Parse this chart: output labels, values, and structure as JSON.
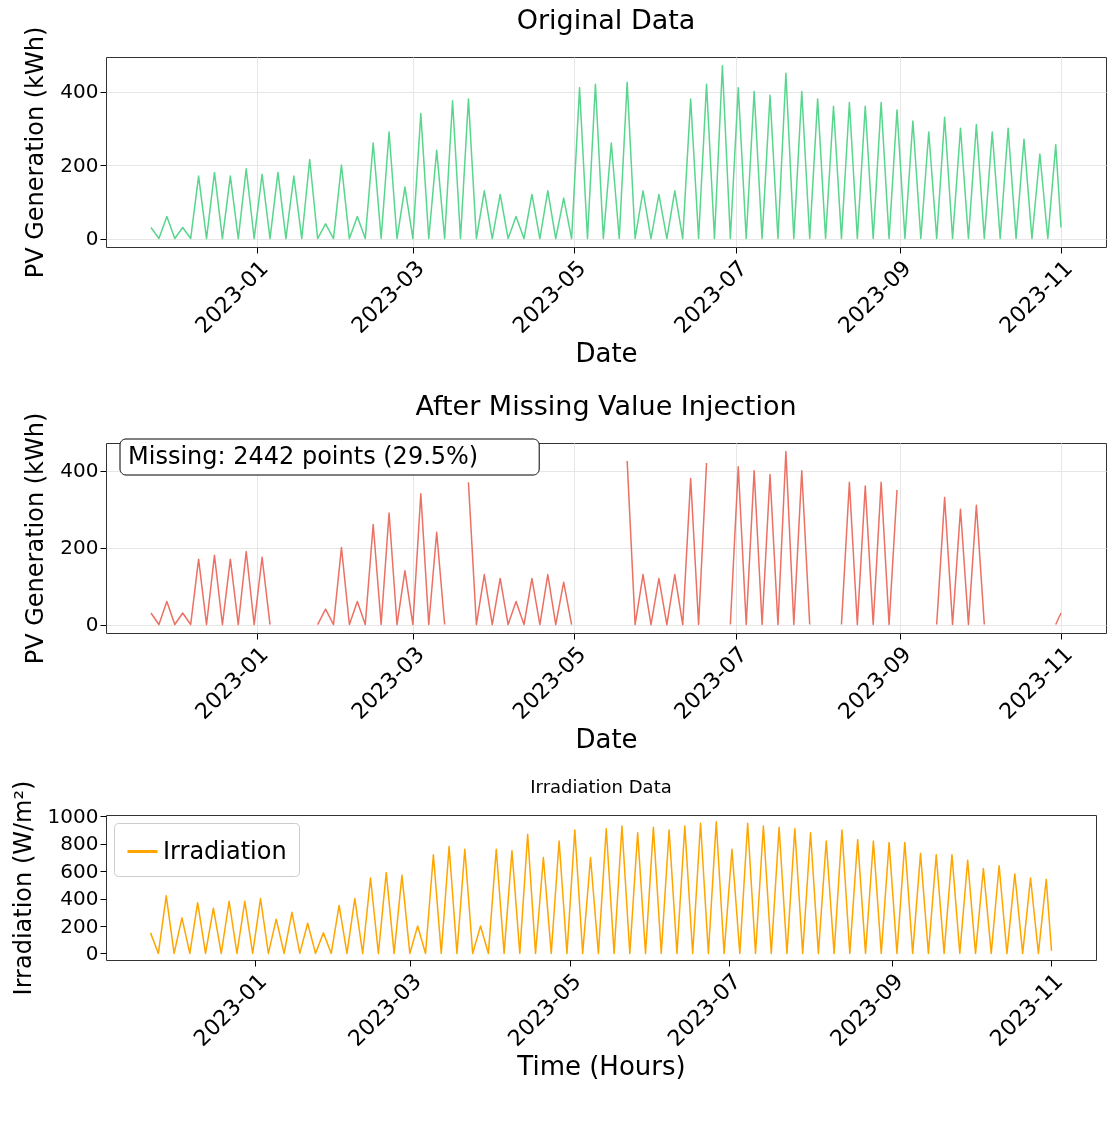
{
  "chart_data": [
    {
      "type": "line",
      "title": "Original Data",
      "xlabel": "Date",
      "ylabel": "PV Generation (kWh)",
      "grid": true,
      "xlim": [
        "2022-11-05",
        "2023-11-18"
      ],
      "xticks": [
        {
          "value": "2023-01",
          "label": "2023-01"
        },
        {
          "value": "2023-03",
          "label": "2023-03"
        },
        {
          "value": "2023-05",
          "label": "2023-05"
        },
        {
          "value": "2023-07",
          "label": "2023-07"
        },
        {
          "value": "2023-09",
          "label": "2023-09"
        },
        {
          "value": "2023-11",
          "label": "2023-11"
        }
      ],
      "ylim": [
        -23,
        494
      ],
      "yticks": [
        0,
        200,
        400
      ],
      "x": [
        "2022-11-22",
        "2022-11-25",
        "2022-11-28",
        "2022-12-01",
        "2022-12-04",
        "2022-12-07",
        "2022-12-10",
        "2022-12-13",
        "2022-12-16",
        "2022-12-19",
        "2022-12-22",
        "2022-12-25",
        "2022-12-28",
        "2022-12-31",
        "2023-01-03",
        "2023-01-06",
        "2023-01-09",
        "2023-01-12",
        "2023-01-15",
        "2023-01-18",
        "2023-01-21",
        "2023-01-24",
        "2023-01-27",
        "2023-01-30",
        "2023-02-02",
        "2023-02-05",
        "2023-02-08",
        "2023-02-11",
        "2023-02-14",
        "2023-02-17",
        "2023-02-20",
        "2023-02-23",
        "2023-02-26",
        "2023-03-01",
        "2023-03-04",
        "2023-03-07",
        "2023-03-10",
        "2023-03-13",
        "2023-03-16",
        "2023-03-19",
        "2023-03-22",
        "2023-03-25",
        "2023-03-28",
        "2023-03-31",
        "2023-04-03",
        "2023-04-06",
        "2023-04-09",
        "2023-04-12",
        "2023-04-15",
        "2023-04-18",
        "2023-04-21",
        "2023-04-24",
        "2023-04-27",
        "2023-04-30",
        "2023-05-03",
        "2023-05-06",
        "2023-05-09",
        "2023-05-12",
        "2023-05-15",
        "2023-05-18",
        "2023-05-21",
        "2023-05-24",
        "2023-05-27",
        "2023-05-30",
        "2023-06-02",
        "2023-06-05",
        "2023-06-08",
        "2023-06-11",
        "2023-06-14",
        "2023-06-17",
        "2023-06-20",
        "2023-06-23",
        "2023-06-26",
        "2023-06-29",
        "2023-07-02",
        "2023-07-05",
        "2023-07-08",
        "2023-07-11",
        "2023-07-14",
        "2023-07-17",
        "2023-07-20",
        "2023-07-23",
        "2023-07-26",
        "2023-07-29",
        "2023-08-01",
        "2023-08-04",
        "2023-08-07",
        "2023-08-10",
        "2023-08-13",
        "2023-08-16",
        "2023-08-19",
        "2023-08-22",
        "2023-08-25",
        "2023-08-28",
        "2023-08-31",
        "2023-09-03",
        "2023-09-06",
        "2023-09-09",
        "2023-09-12",
        "2023-09-15",
        "2023-09-18",
        "2023-09-21",
        "2023-09-24",
        "2023-09-27",
        "2023-09-30",
        "2023-10-03",
        "2023-10-06",
        "2023-10-09",
        "2023-10-12",
        "2023-10-15",
        "2023-10-18",
        "2023-10-21",
        "2023-10-24",
        "2023-10-27",
        "2023-10-30",
        "2023-11-01"
      ],
      "series": [
        {
          "color": "#58d68d",
          "values": [
            30,
            0,
            60,
            0,
            30,
            0,
            170,
            0,
            180,
            0,
            170,
            0,
            190,
            0,
            175,
            0,
            180,
            0,
            170,
            0,
            215,
            0,
            40,
            0,
            200,
            0,
            60,
            0,
            260,
            0,
            290,
            0,
            140,
            0,
            340,
            0,
            240,
            0,
            375,
            0,
            380,
            0,
            130,
            0,
            120,
            0,
            60,
            0,
            120,
            0,
            130,
            0,
            110,
            0,
            410,
            0,
            420,
            0,
            260,
            0,
            425,
            0,
            130,
            0,
            120,
            0,
            130,
            0,
            380,
            0,
            420,
            0,
            470,
            0,
            410,
            0,
            400,
            0,
            390,
            0,
            450,
            0,
            400,
            0,
            380,
            0,
            360,
            0,
            370,
            0,
            360,
            0,
            370,
            0,
            350,
            0,
            320,
            0,
            290,
            0,
            330,
            0,
            300,
            0,
            310,
            0,
            290,
            0,
            300,
            0,
            270,
            0,
            230,
            0,
            255,
            30
          ]
        }
      ]
    },
    {
      "type": "line",
      "title": "After Missing Value Injection",
      "xlabel": "Date",
      "ylabel": "PV Generation (kWh)",
      "grid": true,
      "annotations": [
        "Missing: 2442 points (29.5%)"
      ],
      "xlim": [
        "2022-11-05",
        "2023-11-18"
      ],
      "xticks": [
        {
          "value": "2023-01",
          "label": "2023-01"
        },
        {
          "value": "2023-03",
          "label": "2023-03"
        },
        {
          "value": "2023-05",
          "label": "2023-05"
        },
        {
          "value": "2023-07",
          "label": "2023-07"
        },
        {
          "value": "2023-09",
          "label": "2023-09"
        },
        {
          "value": "2023-11",
          "label": "2023-11"
        }
      ],
      "ylim": [
        -22,
        472
      ],
      "yticks": [
        0,
        200,
        400
      ],
      "x": [
        "2022-11-22",
        "2022-11-25",
        "2022-11-28",
        "2022-12-01",
        "2022-12-04",
        "2022-12-07",
        "2022-12-10",
        "2022-12-13",
        "2022-12-16",
        "2022-12-19",
        "2022-12-22",
        "2022-12-25",
        "2022-12-28",
        "2022-12-31",
        "2023-01-03",
        "2023-01-06",
        "2023-01-09",
        "2023-01-12",
        "2023-01-15",
        "2023-01-18",
        "2023-01-21",
        "2023-01-24",
        "2023-01-27",
        "2023-01-30",
        "2023-02-02",
        "2023-02-05",
        "2023-02-08",
        "2023-02-11",
        "2023-02-14",
        "2023-02-17",
        "2023-02-20",
        "2023-02-23",
        "2023-02-26",
        "2023-03-01",
        "2023-03-04",
        "2023-03-07",
        "2023-03-10",
        "2023-03-13",
        "2023-03-16",
        "2023-03-19",
        "2023-03-22",
        "2023-03-25",
        "2023-03-28",
        "2023-03-31",
        "2023-04-03",
        "2023-04-06",
        "2023-04-09",
        "2023-04-12",
        "2023-04-15",
        "2023-04-18",
        "2023-04-21",
        "2023-04-24",
        "2023-04-27",
        "2023-04-30",
        "2023-05-03",
        "2023-05-06",
        "2023-05-09",
        "2023-05-12",
        "2023-05-15",
        "2023-05-18",
        "2023-05-21",
        "2023-05-24",
        "2023-05-27",
        "2023-05-30",
        "2023-06-02",
        "2023-06-05",
        "2023-06-08",
        "2023-06-11",
        "2023-06-14",
        "2023-06-17",
        "2023-06-20",
        "2023-06-23",
        "2023-06-26",
        "2023-06-29",
        "2023-07-02",
        "2023-07-05",
        "2023-07-08",
        "2023-07-11",
        "2023-07-14",
        "2023-07-17",
        "2023-07-20",
        "2023-07-23",
        "2023-07-26",
        "2023-07-29",
        "2023-08-01",
        "2023-08-04",
        "2023-08-07",
        "2023-08-10",
        "2023-08-13",
        "2023-08-16",
        "2023-08-19",
        "2023-08-22",
        "2023-08-25",
        "2023-08-28",
        "2023-08-31",
        "2023-09-03",
        "2023-09-06",
        "2023-09-09",
        "2023-09-12",
        "2023-09-15",
        "2023-09-18",
        "2023-09-21",
        "2023-09-24",
        "2023-09-27",
        "2023-09-30",
        "2023-10-03",
        "2023-10-06",
        "2023-10-09",
        "2023-10-12",
        "2023-10-15",
        "2023-10-18",
        "2023-10-21",
        "2023-10-24",
        "2023-10-27",
        "2023-10-30",
        "2023-11-01"
      ],
      "series": [
        {
          "color": "#ec7063",
          "values": [
            30,
            0,
            60,
            0,
            30,
            0,
            170,
            0,
            180,
            0,
            170,
            0,
            190,
            0,
            175,
            0,
            null,
            null,
            null,
            null,
            null,
            0,
            40,
            0,
            200,
            0,
            60,
            0,
            260,
            0,
            290,
            0,
            140,
            0,
            340,
            0,
            240,
            0,
            null,
            null,
            370,
            0,
            130,
            0,
            120,
            0,
            60,
            0,
            120,
            0,
            130,
            0,
            110,
            0,
            null,
            null,
            null,
            null,
            null,
            null,
            425,
            0,
            130,
            0,
            120,
            0,
            130,
            0,
            380,
            0,
            420,
            null,
            null,
            0,
            410,
            0,
            400,
            0,
            390,
            0,
            450,
            0,
            400,
            0,
            null,
            null,
            null,
            0,
            370,
            0,
            360,
            0,
            370,
            0,
            350,
            null,
            null,
            null,
            null,
            0,
            330,
            0,
            300,
            0,
            310,
            0,
            null,
            null,
            null,
            null,
            null,
            null,
            null,
            null,
            0,
            30
          ]
        }
      ]
    },
    {
      "type": "line",
      "title": "Irradiation Data",
      "xlabel": "Time (Hours)",
      "ylabel": "Irradiation (W/m²)",
      "legend": "top left",
      "xlim": [
        "2022-11-05",
        "2023-11-18"
      ],
      "xticks": [
        {
          "value": "2023-01",
          "label": "2023-01"
        },
        {
          "value": "2023-03",
          "label": "2023-03"
        },
        {
          "value": "2023-05",
          "label": "2023-05"
        },
        {
          "value": "2023-07",
          "label": "2023-07"
        },
        {
          "value": "2023-09",
          "label": "2023-09"
        },
        {
          "value": "2023-11",
          "label": "2023-11"
        }
      ],
      "ylim": [
        -48,
        1010
      ],
      "yticks": [
        0,
        200,
        400,
        600,
        800,
        1000
      ],
      "x": [
        "2022-11-22",
        "2022-11-25",
        "2022-11-28",
        "2022-12-01",
        "2022-12-04",
        "2022-12-07",
        "2022-12-10",
        "2022-12-13",
        "2022-12-16",
        "2022-12-19",
        "2022-12-22",
        "2022-12-25",
        "2022-12-28",
        "2022-12-31",
        "2023-01-03",
        "2023-01-06",
        "2023-01-09",
        "2023-01-12",
        "2023-01-15",
        "2023-01-18",
        "2023-01-21",
        "2023-01-24",
        "2023-01-27",
        "2023-01-30",
        "2023-02-02",
        "2023-02-05",
        "2023-02-08",
        "2023-02-11",
        "2023-02-14",
        "2023-02-17",
        "2023-02-20",
        "2023-02-23",
        "2023-02-26",
        "2023-03-01",
        "2023-03-04",
        "2023-03-07",
        "2023-03-10",
        "2023-03-13",
        "2023-03-16",
        "2023-03-19",
        "2023-03-22",
        "2023-03-25",
        "2023-03-28",
        "2023-03-31",
        "2023-04-03",
        "2023-04-06",
        "2023-04-09",
        "2023-04-12",
        "2023-04-15",
        "2023-04-18",
        "2023-04-21",
        "2023-04-24",
        "2023-04-27",
        "2023-04-30",
        "2023-05-03",
        "2023-05-06",
        "2023-05-09",
        "2023-05-12",
        "2023-05-15",
        "2023-05-18",
        "2023-05-21",
        "2023-05-24",
        "2023-05-27",
        "2023-05-30",
        "2023-06-02",
        "2023-06-05",
        "2023-06-08",
        "2023-06-11",
        "2023-06-14",
        "2023-06-17",
        "2023-06-20",
        "2023-06-23",
        "2023-06-26",
        "2023-06-29",
        "2023-07-02",
        "2023-07-05",
        "2023-07-08",
        "2023-07-11",
        "2023-07-14",
        "2023-07-17",
        "2023-07-20",
        "2023-07-23",
        "2023-07-26",
        "2023-07-29",
        "2023-08-01",
        "2023-08-04",
        "2023-08-07",
        "2023-08-10",
        "2023-08-13",
        "2023-08-16",
        "2023-08-19",
        "2023-08-22",
        "2023-08-25",
        "2023-08-28",
        "2023-08-31",
        "2023-09-03",
        "2023-09-06",
        "2023-09-09",
        "2023-09-12",
        "2023-09-15",
        "2023-09-18",
        "2023-09-21",
        "2023-09-24",
        "2023-09-27",
        "2023-09-30",
        "2023-10-03",
        "2023-10-06",
        "2023-10-09",
        "2023-10-12",
        "2023-10-15",
        "2023-10-18",
        "2023-10-21",
        "2023-10-24",
        "2023-10-27",
        "2023-10-30",
        "2023-11-01"
      ],
      "series": [
        {
          "name": "Irradiation",
          "color": "#ffa500",
          "values": [
            150,
            0,
            420,
            0,
            260,
            0,
            370,
            0,
            330,
            0,
            380,
            0,
            380,
            0,
            400,
            0,
            250,
            0,
            300,
            0,
            220,
            0,
            150,
            0,
            350,
            0,
            400,
            0,
            550,
            0,
            590,
            0,
            570,
            0,
            200,
            0,
            720,
            0,
            780,
            0,
            760,
            0,
            200,
            0,
            760,
            0,
            750,
            0,
            870,
            0,
            700,
            0,
            820,
            0,
            900,
            0,
            700,
            0,
            910,
            0,
            930,
            0,
            880,
            0,
            920,
            0,
            900,
            0,
            930,
            0,
            950,
            0,
            960,
            0,
            760,
            0,
            950,
            0,
            930,
            0,
            920,
            0,
            910,
            0,
            880,
            0,
            820,
            0,
            900,
            0,
            830,
            0,
            820,
            0,
            810,
            0,
            810,
            0,
            730,
            0,
            720,
            0,
            720,
            0,
            680,
            0,
            620,
            0,
            640,
            0,
            580,
            0,
            550,
            0,
            540,
            20
          ]
        }
      ]
    }
  ]
}
